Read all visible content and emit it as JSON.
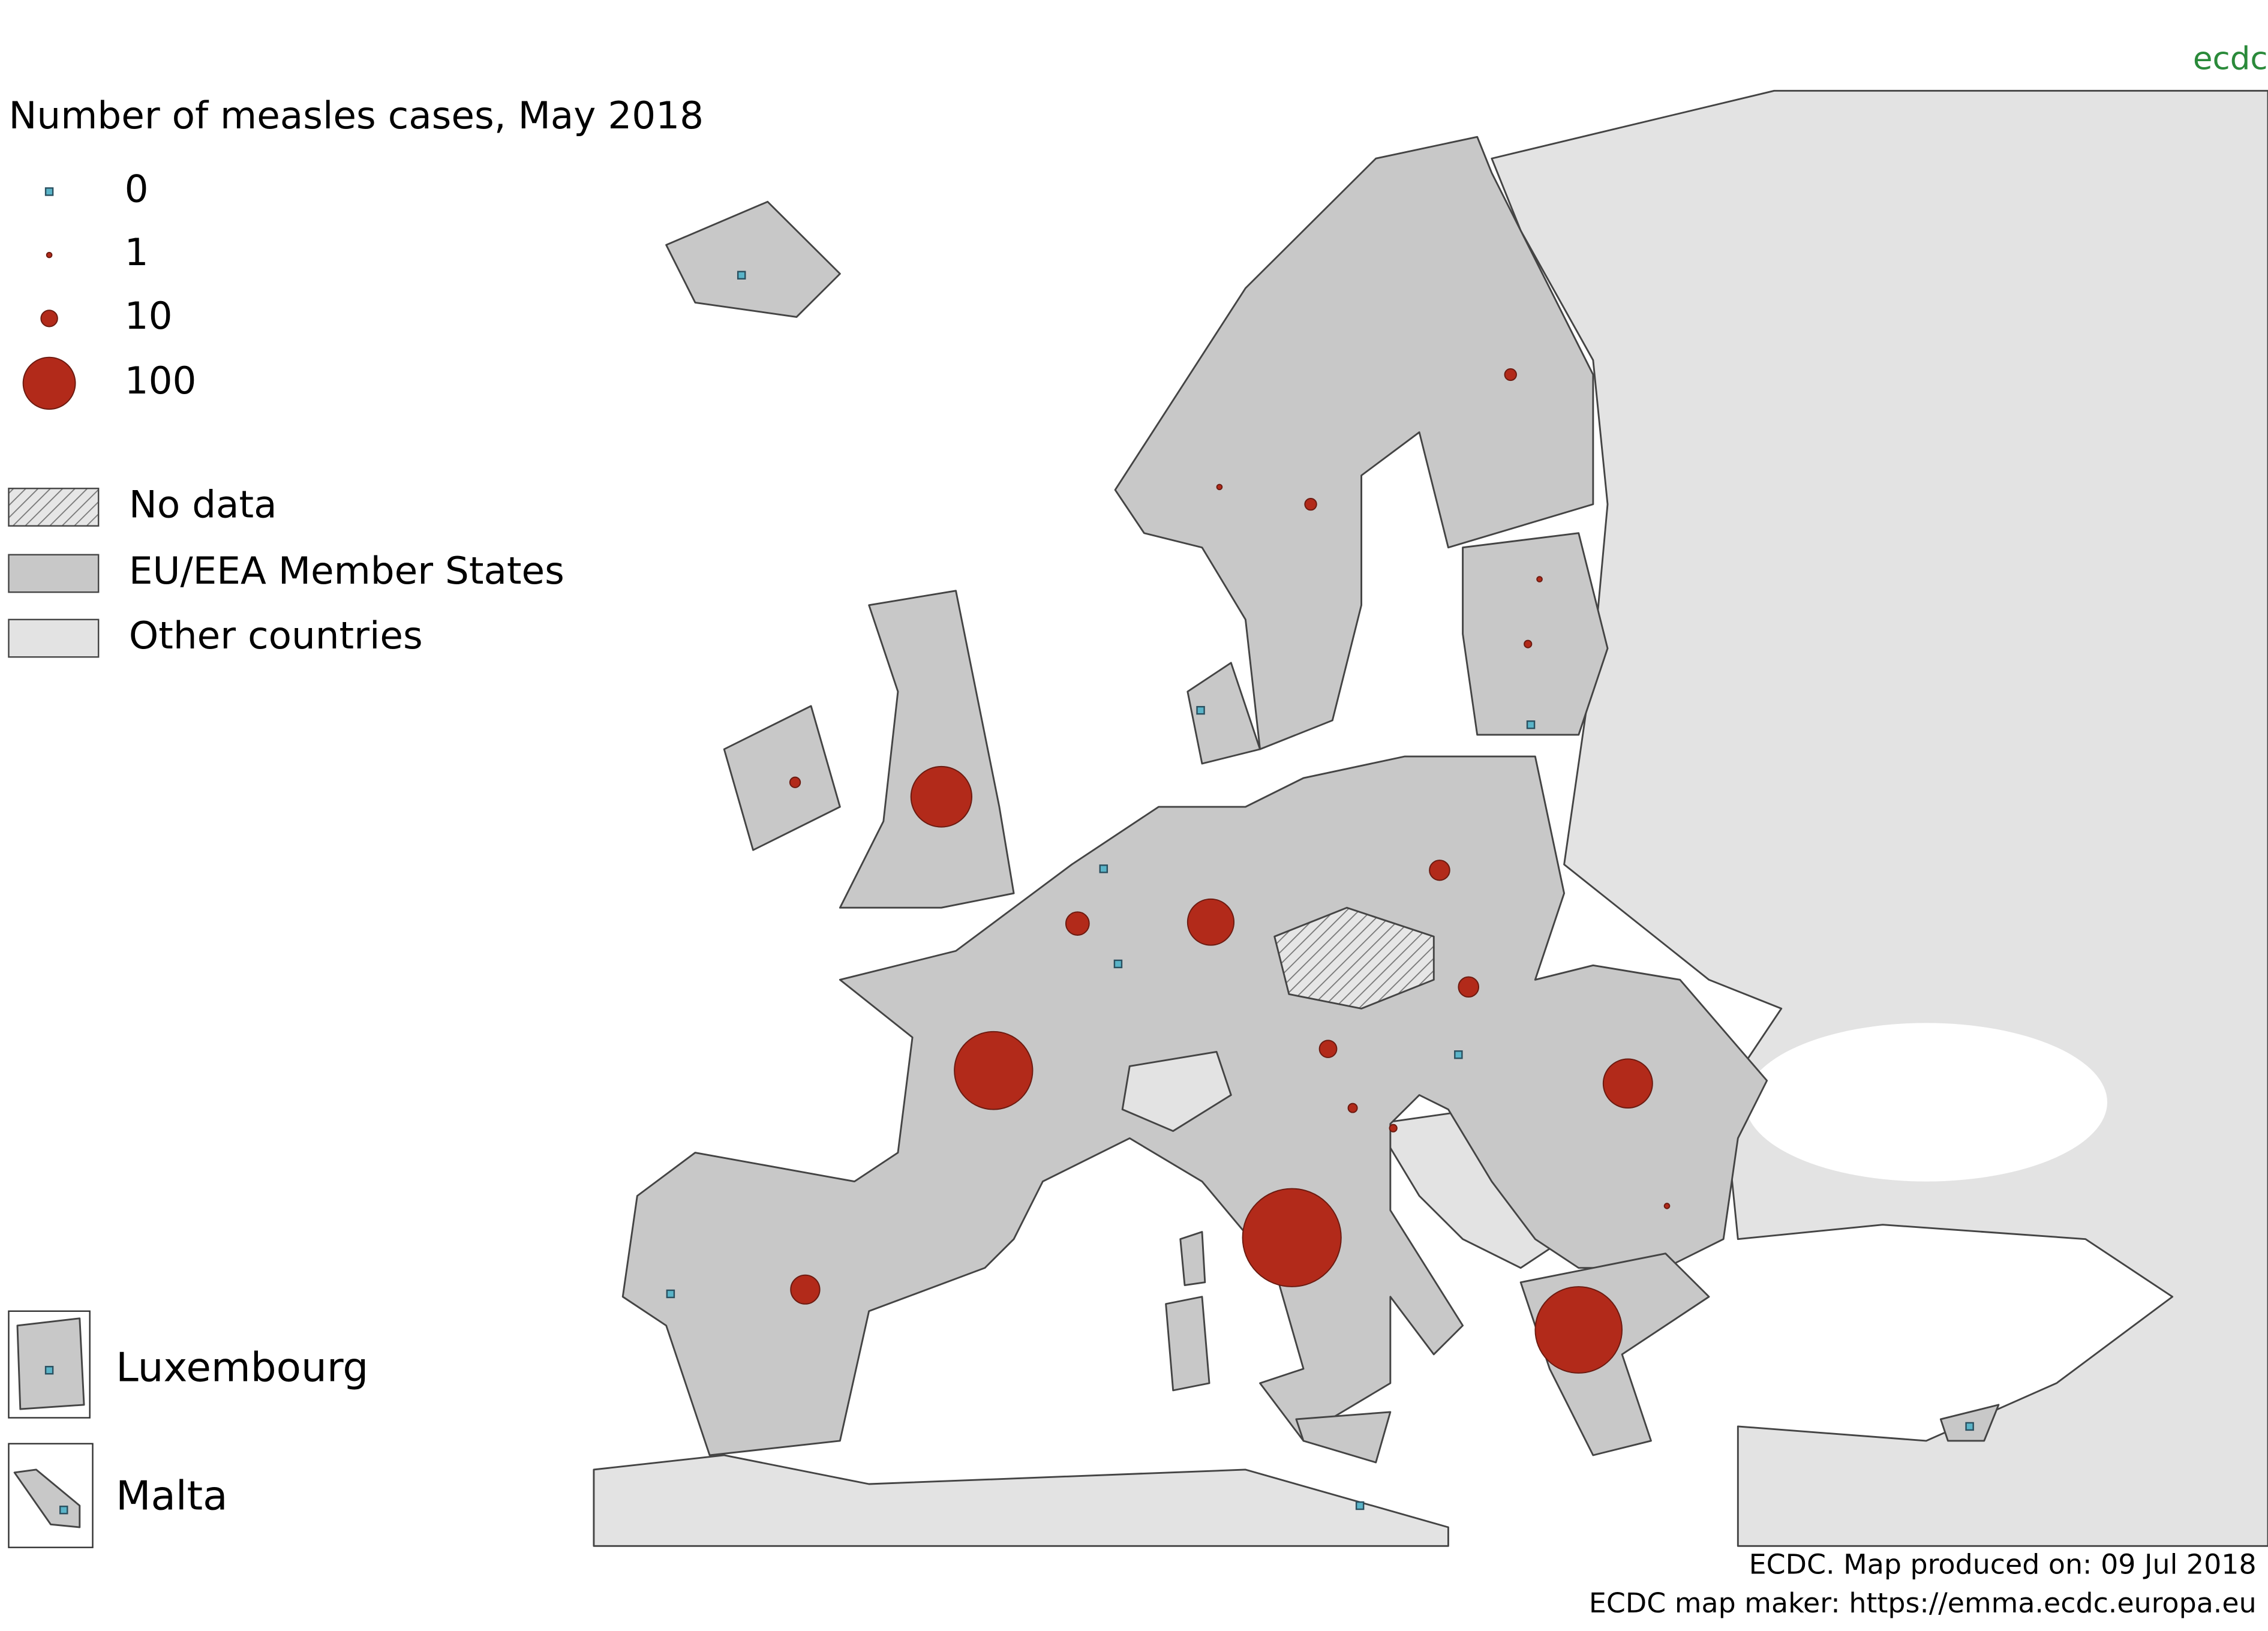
{
  "chart_data": {
    "type": "map",
    "title": "Number of measles cases, May 2018",
    "legend_sizes": [
      0,
      1,
      10,
      100
    ],
    "legend_areas": [
      "No data",
      "EU/EEA Member States",
      "Other countries"
    ],
    "insets": [
      "Luxembourg",
      "Malta"
    ],
    "footer": [
      "ECDC. Map produced on: 09 Jul 2018",
      "ECDC map maker: https://emma.ecdc.europa.eu"
    ],
    "logo": "ecdc",
    "marker_color": "#b22a1a",
    "zero_color": "#5ab4c8",
    "values": [
      0,
      1,
      5,
      5,
      1,
      2,
      0,
      0,
      4,
      136,
      0,
      20,
      0,
      79,
      15,
      15,
      225,
      11,
      0,
      3,
      2,
      89,
      1,
      357,
      31,
      0,
      277,
      0,
      0,
      0,
      0
    ]
  }
}
